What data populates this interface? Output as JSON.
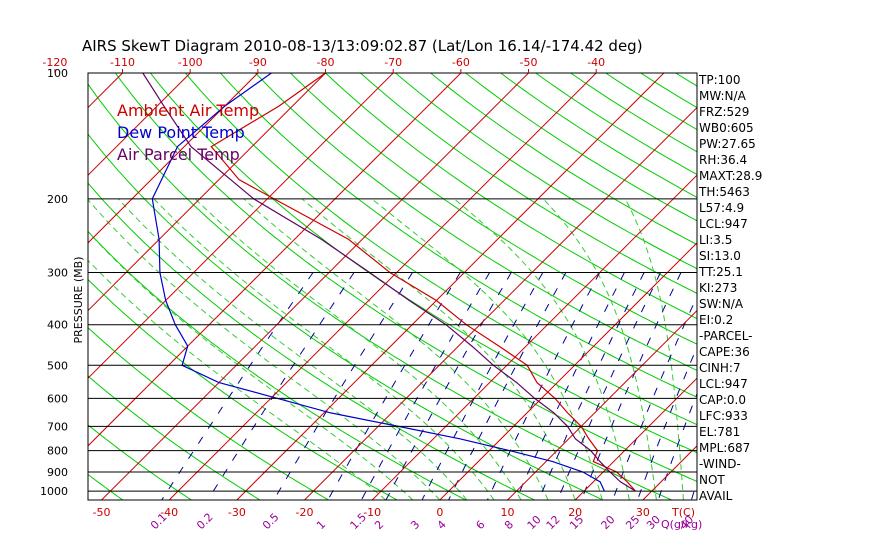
{
  "chart_data": {
    "type": "line",
    "title": "AIRS SkewT Diagram 2010-08-13/13:09:02.87 (Lat/Lon 16.14/-174.42 deg)",
    "ylabel": "PRESSURE (MB)",
    "xlabel": "T(C)",
    "mixing_ratio_label": "Q(g/kg)",
    "p_range": [
      1050,
      100
    ],
    "bottom_temp_range": [
      -52,
      38
    ],
    "pressure_levels": [
      100,
      200,
      300,
      400,
      500,
      600,
      700,
      800,
      900,
      1000
    ],
    "pressure_tick_labels": [
      "100",
      "200",
      "300",
      "400",
      "500",
      "600",
      "700",
      "800",
      "900",
      "1000"
    ],
    "top_temp_ticks": [
      -120,
      -110,
      -100,
      -90,
      -80,
      -70,
      -60,
      -50,
      -40
    ],
    "top_temp_tick_labels": [
      "-120",
      "-110",
      "-100",
      "-90",
      "-80",
      "-70",
      "-60",
      "-50",
      "-40"
    ],
    "bottom_temp_ticks": [
      -50,
      -40,
      -30,
      -20,
      -10,
      0,
      10,
      20,
      30
    ],
    "bottom_temp_tick_labels": [
      "-50",
      "-40",
      "-30",
      "-20",
      "-10",
      "0",
      "10",
      "20",
      "30"
    ],
    "mixing_ratio_values": [
      0.1,
      0.2,
      0.5,
      1,
      1.5,
      2,
      3,
      4,
      6,
      8,
      10,
      12,
      15,
      20,
      25,
      30,
      40
    ],
    "mixing_ratio_labels": [
      "0.1",
      "0.2",
      "0.5",
      "1",
      "1.5",
      "2",
      "3",
      "4",
      "6",
      "8",
      "10",
      "12",
      "15",
      "20",
      "25",
      "30",
      "40"
    ],
    "series": [
      {
        "name": "Ambient Air Temp",
        "color": "#cc0000",
        "points": [
          [
            100,
            -80
          ],
          [
            120,
            -82
          ],
          [
            150,
            -86
          ],
          [
            180,
            -77
          ],
          [
            200,
            -69
          ],
          [
            250,
            -52
          ],
          [
            300,
            -41
          ],
          [
            350,
            -30
          ],
          [
            400,
            -22
          ],
          [
            450,
            -14
          ],
          [
            500,
            -7
          ],
          [
            550,
            -3
          ],
          [
            600,
            2
          ],
          [
            650,
            6
          ],
          [
            700,
            10
          ],
          [
            750,
            13
          ],
          [
            800,
            16
          ],
          [
            850,
            17
          ],
          [
            900,
            22
          ],
          [
            950,
            25
          ],
          [
            1000,
            27.6
          ]
        ]
      },
      {
        "name": "Dew Point Temp",
        "color": "#0000cc",
        "points": [
          [
            100,
            -88
          ],
          [
            120,
            -90
          ],
          [
            150,
            -91
          ],
          [
            200,
            -87
          ],
          [
            250,
            -80
          ],
          [
            300,
            -75
          ],
          [
            350,
            -70
          ],
          [
            400,
            -65
          ],
          [
            450,
            -60
          ],
          [
            500,
            -58
          ],
          [
            550,
            -50
          ],
          [
            600,
            -39
          ],
          [
            650,
            -29
          ],
          [
            700,
            -17
          ],
          [
            750,
            -6
          ],
          [
            800,
            3
          ],
          [
            850,
            11
          ],
          [
            900,
            17
          ],
          [
            950,
            21
          ],
          [
            1000,
            23
          ]
        ]
      },
      {
        "name": "Air Parcel Temp",
        "color": "#660066",
        "points": [
          [
            100,
            -107
          ],
          [
            120,
            -99
          ],
          [
            150,
            -89
          ],
          [
            200,
            -72
          ],
          [
            250,
            -56
          ],
          [
            300,
            -44
          ],
          [
            350,
            -34
          ],
          [
            400,
            -25
          ],
          [
            450,
            -18
          ],
          [
            500,
            -12
          ],
          [
            550,
            -6
          ],
          [
            600,
            -1
          ],
          [
            650,
            4
          ],
          [
            700,
            8
          ],
          [
            750,
            11
          ],
          [
            800,
            15
          ],
          [
            850,
            18
          ],
          [
            900,
            21
          ],
          [
            950,
            24
          ],
          [
            1000,
            27.6
          ]
        ]
      }
    ],
    "legend": [
      "Ambient Air Temp",
      "Dew Point Temp",
      "Air Parcel Temp"
    ],
    "legend_placement": "top-left",
    "info_panel": [
      "TP:100",
      "MW:N/A",
      "FRZ:529",
      "WB0:605",
      "PW:27.65",
      "RH:36.4",
      "MAXT:28.9",
      "TH:5463",
      "L57:4.9",
      "LCL:947",
      "LI:3.5",
      "SI:13.0",
      "TT:25.1",
      "KI:273",
      "SW:N/A",
      "EI:0.2",
      "-PARCEL-",
      "CAPE:36",
      "CINH:7",
      "LCL:947",
      "CAP:0.0",
      "LFC:933",
      "EL:781",
      "MPL:687",
      "-WIND-",
      "NOT",
      "AVAIL"
    ],
    "colors": {
      "isotherm": "#cc0000",
      "dry_adiabat": "#00cc00",
      "moist_adiabat": "#33cc33",
      "mixing_ratio": "#000099",
      "ambient": "#cc0000",
      "dewpoint": "#0000cc",
      "parcel": "#660066",
      "axis": "#000000",
      "tick_red": "#cc0000",
      "tick_purple": "#990099"
    }
  }
}
